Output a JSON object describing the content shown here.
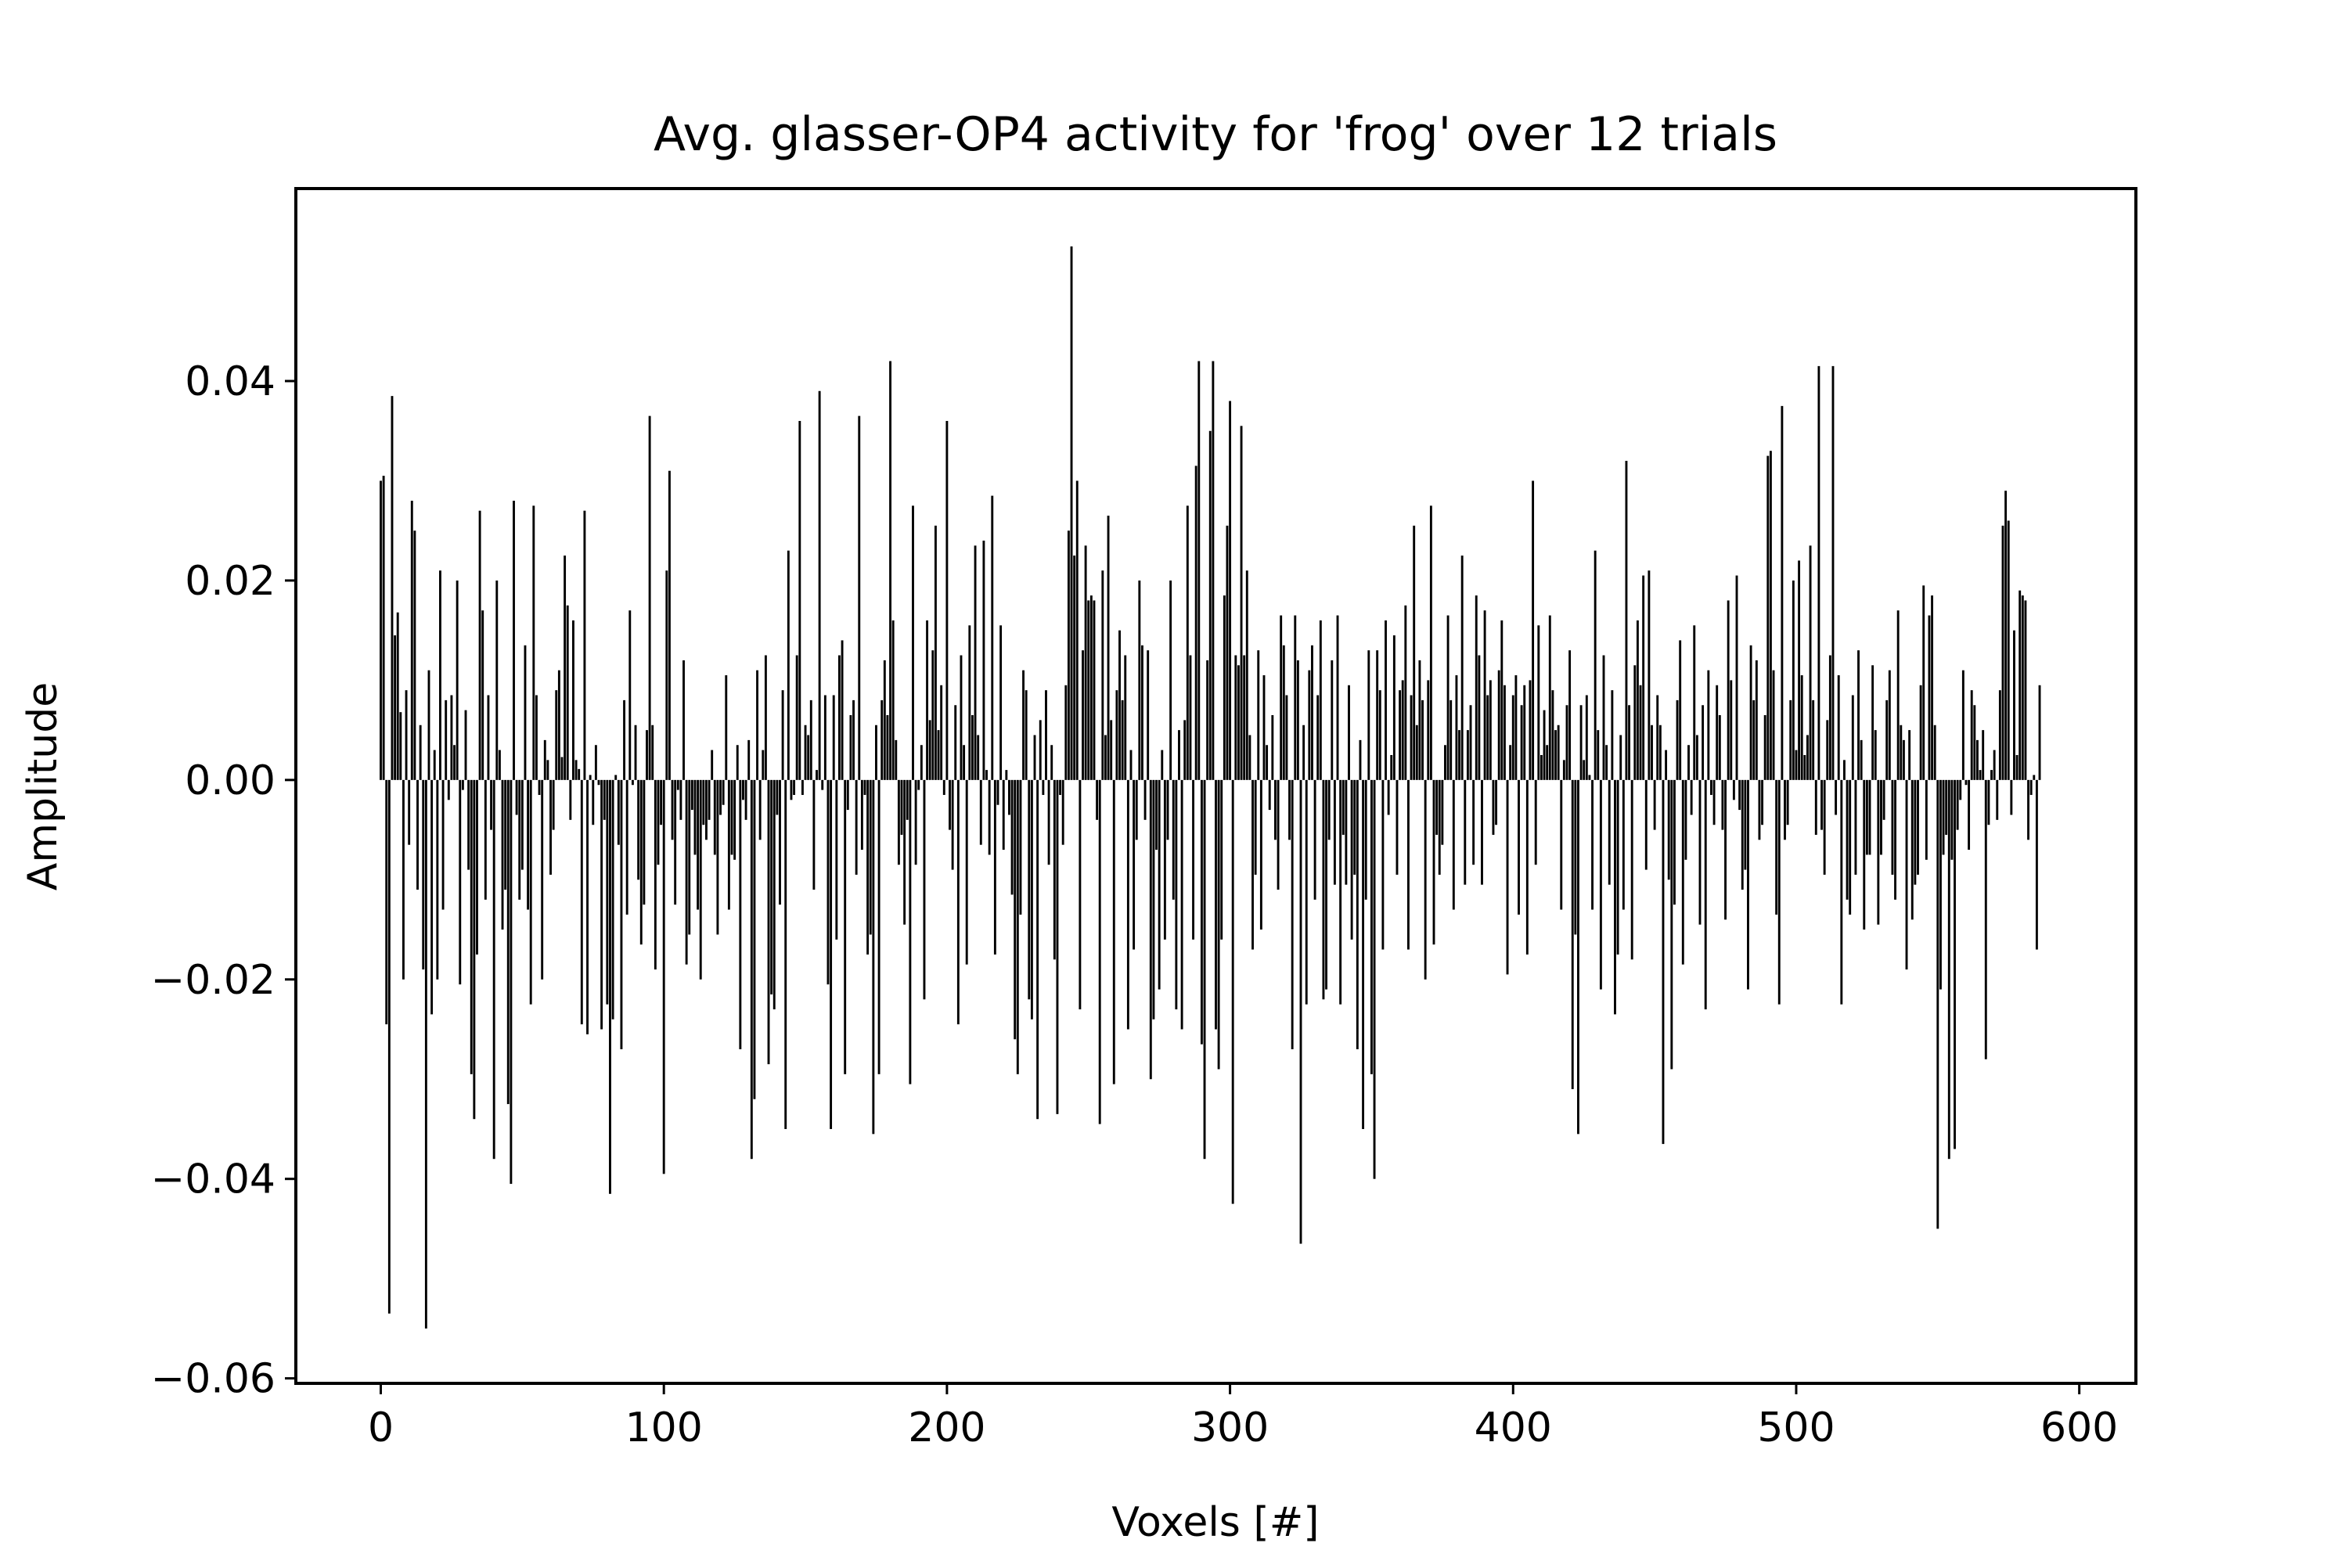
{
  "chart_data": {
    "type": "bar",
    "title": "Avg. glasser-OP4 activity for 'frog' over 12 trials",
    "xlabel": "Voxels [#]",
    "ylabel": "Amplitude",
    "xlim": [
      -30,
      620
    ],
    "ylim": [
      -0.0605,
      0.0593
    ],
    "x_ticks": [
      0,
      100,
      200,
      300,
      400,
      500,
      600
    ],
    "x_tick_labels": [
      "0",
      "100",
      "200",
      "300",
      "400",
      "500",
      "600"
    ],
    "y_ticks": [
      -0.06,
      -0.04,
      -0.02,
      0.0,
      0.02,
      0.04
    ],
    "y_tick_labels": [
      "−0.06",
      "−0.04",
      "−0.02",
      "0.00",
      "0.02",
      "0.04"
    ],
    "grid": false,
    "bar_color": "#000000",
    "x_start": 0,
    "x_step": 1,
    "values": [
      0.03,
      0.0305,
      -0.0245,
      -0.0535,
      0.0385,
      0.0145,
      0.0168,
      0.0068,
      -0.02,
      0.009,
      -0.0065,
      0.028,
      0.025,
      -0.011,
      0.0055,
      -0.019,
      -0.055,
      0.011,
      -0.0235,
      0.003,
      -0.02,
      0.021,
      -0.013,
      0.008,
      -0.002,
      0.0085,
      0.0035,
      0.02,
      -0.0205,
      -0.001,
      0.007,
      -0.009,
      -0.0295,
      -0.034,
      -0.0175,
      0.027,
      0.017,
      -0.012,
      0.0085,
      -0.005,
      -0.038,
      0.02,
      0.003,
      -0.015,
      -0.011,
      -0.0325,
      -0.0405,
      0.028,
      -0.0035,
      -0.012,
      -0.009,
      0.0135,
      -0.013,
      -0.0225,
      0.0275,
      0.0085,
      -0.0015,
      -0.02,
      0.004,
      0.002,
      -0.0095,
      -0.005,
      0.009,
      0.011,
      0.0023,
      0.0225,
      0.0175,
      -0.004,
      0.016,
      0.002,
      0.0011,
      -0.0245,
      0.027,
      -0.0255,
      0.0005,
      -0.0045,
      0.0035,
      -0.0005,
      -0.025,
      -0.004,
      -0.0225,
      -0.0415,
      -0.024,
      0.0005,
      -0.0065,
      -0.027,
      0.008,
      -0.0135,
      0.017,
      -0.0005,
      0.0055,
      -0.01,
      -0.0165,
      -0.0125,
      0.005,
      0.0365,
      0.0055,
      -0.019,
      -0.0085,
      -0.0045,
      -0.0395,
      0.021,
      0.031,
      -0.006,
      -0.0125,
      -0.001,
      -0.004,
      0.012,
      -0.0185,
      -0.0155,
      -0.003,
      -0.0075,
      -0.013,
      -0.02,
      -0.0045,
      -0.006,
      -0.004,
      0.003,
      -0.0075,
      -0.0155,
      -0.0035,
      -0.0025,
      0.0105,
      -0.013,
      -0.0075,
      -0.008,
      0.0035,
      -0.027,
      -0.002,
      -0.004,
      0.004,
      -0.038,
      -0.032,
      0.011,
      -0.006,
      0.003,
      0.0125,
      -0.0285,
      -0.0215,
      -0.023,
      -0.0035,
      -0.0125,
      0.009,
      -0.035,
      0.023,
      -0.002,
      -0.0015,
      0.0125,
      0.036,
      -0.0015,
      0.0055,
      0.0045,
      0.008,
      -0.011,
      0.001,
      0.039,
      -0.001,
      0.0085,
      -0.0205,
      -0.035,
      0.0085,
      -0.016,
      0.0125,
      0.014,
      -0.0295,
      -0.003,
      0.0065,
      0.008,
      -0.0095,
      0.0365,
      -0.007,
      -0.0015,
      -0.0175,
      -0.0155,
      -0.0355,
      0.0055,
      -0.0295,
      0.008,
      0.012,
      0.0065,
      0.042,
      0.016,
      0.004,
      -0.0085,
      -0.0055,
      -0.0145,
      -0.004,
      -0.0305,
      0.0275,
      -0.0085,
      -0.001,
      0.0035,
      -0.022,
      0.016,
      0.006,
      0.013,
      0.0255,
      0.005,
      0.0095,
      -0.0015,
      0.036,
      -0.005,
      -0.009,
      0.0075,
      -0.0245,
      0.0125,
      0.0035,
      -0.0185,
      0.0155,
      0.0065,
      0.0235,
      0.0045,
      -0.0065,
      0.024,
      0.001,
      -0.0075,
      0.0285,
      -0.0175,
      -0.0025,
      0.0155,
      -0.007,
      0.001,
      -0.0035,
      -0.0115,
      -0.026,
      -0.0295,
      -0.0135,
      0.011,
      0.009,
      -0.022,
      -0.024,
      0.0045,
      -0.034,
      0.006,
      -0.0015,
      0.009,
      -0.0085,
      0.0035,
      -0.018,
      -0.0335,
      -0.0015,
      -0.0065,
      0.0095,
      0.025,
      0.0535,
      0.0225,
      0.03,
      -0.023,
      0.013,
      0.0235,
      0.018,
      0.0185,
      0.018,
      -0.004,
      -0.0345,
      0.021,
      0.0045,
      0.0265,
      0.006,
      -0.0305,
      0.009,
      0.015,
      0.008,
      0.0125,
      -0.025,
      0.003,
      -0.017,
      -0.006,
      0.02,
      0.0135,
      -0.004,
      0.013,
      -0.03,
      -0.024,
      -0.007,
      -0.021,
      0.003,
      -0.016,
      -0.006,
      0.02,
      -0.012,
      -0.023,
      0.005,
      -0.025,
      0.006,
      0.0275,
      0.0125,
      -0.016,
      0.0315,
      0.042,
      -0.0265,
      -0.038,
      0.012,
      0.035,
      0.042,
      -0.025,
      -0.029,
      -0.016,
      0.0185,
      0.0255,
      0.038,
      -0.0425,
      0.0125,
      0.0115,
      0.0355,
      0.0125,
      0.021,
      0.0045,
      -0.017,
      -0.0095,
      0.013,
      -0.015,
      0.0105,
      0.0035,
      -0.003,
      0.0065,
      -0.006,
      -0.011,
      0.0165,
      0.0135,
      0.0085,
      -0.006,
      -0.027,
      0.0165,
      0.012,
      -0.0465,
      0.0055,
      -0.0225,
      0.011,
      0.0135,
      -0.012,
      0.0085,
      0.016,
      -0.022,
      -0.021,
      -0.006,
      0.012,
      -0.0105,
      0.0165,
      -0.0225,
      -0.0055,
      -0.0105,
      0.0095,
      -0.016,
      -0.0095,
      -0.027,
      0.004,
      -0.035,
      -0.012,
      0.013,
      -0.0295,
      -0.04,
      0.013,
      0.009,
      -0.017,
      0.016,
      -0.0035,
      0.0025,
      0.0145,
      -0.0095,
      0.009,
      0.01,
      0.0175,
      -0.017,
      0.0085,
      0.0255,
      0.0055,
      0.012,
      0.008,
      -0.02,
      0.01,
      0.0275,
      -0.0165,
      -0.0055,
      -0.0095,
      -0.0065,
      0.0035,
      0.0165,
      0.008,
      -0.013,
      0.0105,
      0.005,
      0.0225,
      -0.0105,
      0.005,
      0.0075,
      -0.0085,
      0.0185,
      0.0125,
      -0.0105,
      0.017,
      0.0085,
      0.01,
      -0.0055,
      -0.0045,
      0.011,
      0.016,
      0.0095,
      -0.0195,
      0.0035,
      0.0085,
      0.0105,
      -0.0135,
      0.0075,
      0.0095,
      -0.0175,
      0.01,
      0.03,
      -0.0085,
      0.0155,
      0.0025,
      0.007,
      0.0035,
      0.0165,
      0.009,
      0.005,
      0.0055,
      -0.013,
      0.002,
      0.0075,
      0.013,
      -0.031,
      -0.0155,
      -0.0355,
      0.0075,
      0.002,
      0.0085,
      0.0005,
      -0.013,
      0.023,
      0.005,
      -0.021,
      0.0125,
      0.0035,
      -0.0105,
      0.009,
      -0.0235,
      -0.0175,
      0.0045,
      -0.013,
      0.032,
      0.0075,
      -0.018,
      0.0115,
      0.016,
      0.0095,
      0.0205,
      -0.009,
      0.021,
      0.0055,
      -0.005,
      0.0085,
      0.0055,
      -0.0365,
      0.003,
      -0.01,
      -0.029,
      -0.0125,
      0.008,
      0.014,
      -0.0185,
      -0.008,
      0.0035,
      -0.0035,
      0.0155,
      0.0045,
      -0.0145,
      0.0075,
      -0.023,
      0.011,
      -0.0015,
      -0.0045,
      0.0095,
      0.0065,
      -0.005,
      -0.014,
      0.018,
      0.01,
      -0.002,
      0.0205,
      -0.003,
      -0.011,
      -0.009,
      -0.021,
      0.0135,
      0.008,
      0.012,
      -0.006,
      -0.0045,
      0.0065,
      0.0325,
      0.033,
      0.011,
      -0.0135,
      -0.0225,
      0.0375,
      -0.006,
      -0.0045,
      0.008,
      0.02,
      0.003,
      0.022,
      0.0105,
      0.0025,
      0.0045,
      0.0235,
      0.008,
      -0.0055,
      0.0415,
      -0.005,
      -0.0095,
      0.006,
      0.0125,
      0.0415,
      -0.0035,
      0.0105,
      -0.0225,
      0.002,
      -0.012,
      -0.0135,
      0.0085,
      -0.0095,
      0.013,
      0.004,
      -0.015,
      -0.0075,
      -0.0075,
      0.0115,
      0.005,
      -0.0145,
      -0.0075,
      -0.004,
      0.008,
      0.011,
      -0.0095,
      -0.012,
      0.017,
      0.0055,
      0.004,
      -0.019,
      0.005,
      -0.014,
      -0.0105,
      -0.0095,
      0.0095,
      0.0195,
      -0.008,
      0.0165,
      0.0185,
      0.0055,
      -0.045,
      -0.021,
      -0.0075,
      -0.0055,
      -0.038,
      -0.008,
      -0.037,
      -0.005,
      -0.002,
      0.011,
      -0.0005,
      -0.007,
      0.009,
      0.0075,
      0.004,
      0.001,
      0.005,
      -0.028,
      -0.0045,
      0.001,
      0.003,
      -0.004,
      0.009,
      0.0255,
      0.029,
      0.026,
      -0.0035,
      0.015,
      0.0025,
      0.019,
      0.0185,
      0.018,
      -0.006,
      -0.0015,
      0.0005,
      -0.017,
      0.0095
    ]
  }
}
